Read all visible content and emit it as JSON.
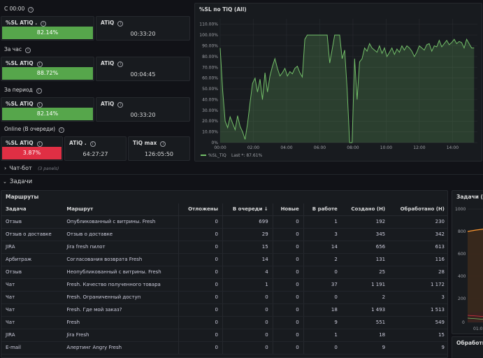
{
  "sections": {
    "since_midnight": "С 00:00",
    "hour": "За час",
    "period": "За период",
    "online": "Online (В очереди)"
  },
  "stats": {
    "s1_sl": {
      "title": "%SL ATiQ .",
      "value": "82.14%",
      "color": "#56a64b"
    },
    "s1_atiq": {
      "title": "ATiQ",
      "value": "00:33:20"
    },
    "s2_sl": {
      "title": "%SL ATiQ",
      "value": "88.72%",
      "color": "#56a64b"
    },
    "s2_atiq": {
      "title": "ATiQ",
      "value": "00:04:45"
    },
    "s3_sl": {
      "title": "%SL ATiQ",
      "value": "82.14%",
      "color": "#56a64b"
    },
    "s3_atiq": {
      "title": "ATiQ",
      "value": "00:33:20"
    },
    "s4_sl": {
      "title": "%SL ATiQ",
      "value": "3.87%",
      "color": "#e02f44"
    },
    "s4_atiq": {
      "title": "ATiQ .",
      "value": "64:27:27"
    },
    "s4_tiq": {
      "title": "TiQ max",
      "value": "126:05:50"
    }
  },
  "chart": {
    "title": "%SL по TiQ (All)",
    "legend_name": "%SL_TiQ",
    "legend_last": "Last *: 87.61%",
    "series_color": "#73bf69"
  },
  "chart_data": {
    "type": "line",
    "title": "%SL по TiQ (All)",
    "x_ticks": [
      "00:00",
      "02:00",
      "04:00",
      "06:00",
      "08:00",
      "10:00",
      "12:00",
      "14:00"
    ],
    "y_ticks": [
      "0%",
      "10.00%",
      "20.00%",
      "30.00%",
      "40.00%",
      "50.00%",
      "60.00%",
      "70.00%",
      "80.00%",
      "90.00%",
      "100.00%",
      "110.00%"
    ],
    "ylim": [
      0,
      115
    ],
    "xlim": [
      0,
      15.5
    ],
    "grid": true,
    "legend_placement": "bottom-left",
    "series": [
      {
        "name": "%SL_TiQ",
        "last": "87.61%",
        "x": [
          0,
          0.15,
          0.3,
          0.45,
          0.6,
          0.75,
          0.9,
          1.05,
          1.2,
          1.35,
          1.5,
          1.65,
          1.8,
          1.95,
          2.1,
          2.25,
          2.4,
          2.55,
          2.7,
          2.85,
          3.0,
          3.15,
          3.3,
          3.45,
          3.6,
          3.75,
          3.9,
          4.05,
          4.2,
          4.35,
          4.5,
          4.65,
          4.8,
          4.95,
          5.1,
          5.25,
          5.4,
          5.55,
          5.7,
          5.85,
          6.0,
          6.15,
          6.3,
          6.45,
          6.6,
          6.75,
          6.9,
          7.05,
          7.2,
          7.35,
          7.5,
          7.65,
          7.8,
          7.95,
          8.1,
          8.25,
          8.4,
          8.55,
          8.7,
          8.85,
          9.0,
          9.15,
          9.3,
          9.45,
          9.6,
          9.75,
          9.9,
          10.05,
          10.2,
          10.35,
          10.5,
          10.65,
          10.8,
          10.95,
          11.1,
          11.25,
          11.4,
          11.55,
          11.7,
          11.85,
          12.0,
          12.15,
          12.3,
          12.45,
          12.6,
          12.75,
          12.9,
          13.05,
          13.2,
          13.35,
          13.5,
          13.65,
          13.8,
          13.95,
          14.1,
          14.25,
          14.4,
          14.55,
          14.7,
          14.85,
          15.0,
          15.15,
          15.3
        ],
        "values": [
          88,
          48,
          20,
          14,
          24,
          18,
          12,
          25,
          15,
          10,
          3,
          18,
          37,
          55,
          60,
          47,
          59,
          40,
          65,
          47,
          62,
          71,
          78,
          69,
          62,
          65,
          69,
          62,
          66,
          64,
          69,
          71,
          65,
          61,
          96,
          100,
          100,
          100,
          100,
          100,
          100,
          100,
          100,
          100,
          74,
          87,
          100,
          100,
          100,
          78,
          86,
          50,
          0,
          0,
          78,
          40,
          75,
          78,
          88,
          85,
          92,
          88,
          86,
          84,
          90,
          83,
          88,
          80,
          84,
          88,
          82,
          87,
          84,
          90,
          86,
          90,
          88,
          85,
          80,
          84,
          90,
          88,
          86,
          91,
          92,
          85,
          90,
          89,
          95,
          89,
          92,
          95,
          91,
          93,
          96,
          92,
          94,
          93,
          88,
          96,
          92,
          88,
          88
        ]
      }
    ]
  },
  "rows": {
    "chat_bot": "Чат-бот",
    "chat_bot_panels": "(3 panels)",
    "tasks": "Задачи"
  },
  "table": {
    "title": "Маршруты",
    "headers": [
      "Задача",
      "Маршрут",
      "Отложены",
      "В очереди ↓",
      "Новые",
      "В работе",
      "Создано (Н)",
      "Обработано (Н)"
    ],
    "rows": [
      [
        "Отзыв",
        "Опубликованный с витрины. Fresh",
        "0",
        "699",
        "0",
        "1",
        "192",
        "230"
      ],
      [
        "Отзыв о доставке",
        "Отзыв о доставке",
        "0",
        "29",
        "0",
        "3",
        "345",
        "342"
      ],
      [
        "JIRA",
        "Jira fresh пилот",
        "0",
        "15",
        "0",
        "14",
        "656",
        "613"
      ],
      [
        "Арбитраж",
        "Согласования возврата Fresh",
        "0",
        "14",
        "0",
        "2",
        "131",
        "116"
      ],
      [
        "Отзыв",
        "Неопубликованный с витрины. Fresh",
        "0",
        "4",
        "0",
        "0",
        "25",
        "28"
      ],
      [
        "Чат",
        "Fresh. Качество полученного товара",
        "0",
        "1",
        "0",
        "37",
        "1 191",
        "1 172"
      ],
      [
        "Чат",
        "Fresh. Ограниченный доступ",
        "0",
        "0",
        "0",
        "0",
        "2",
        "3"
      ],
      [
        "Чат",
        "Fresh. Где мой заказ?",
        "0",
        "0",
        "0",
        "18",
        "1 493",
        "1 513"
      ],
      [
        "Чат",
        "Fresh",
        "0",
        "0",
        "0",
        "9",
        "551",
        "549"
      ],
      [
        "JIRA",
        "Jira Fresh",
        "0",
        "0",
        "0",
        "1",
        "18",
        "15"
      ],
      [
        "E-mail",
        "Алертинг Angry Fresh",
        "0",
        "0",
        "0",
        "0",
        "9",
        "9"
      ]
    ]
  },
  "right_panel": {
    "title": "Задачи (Н)",
    "y_ticks": [
      "1000",
      "800",
      "600",
      "400",
      "200",
      "0"
    ],
    "x_tick": "01:0"
  },
  "bottom_panel": {
    "title": "Обработка"
  }
}
